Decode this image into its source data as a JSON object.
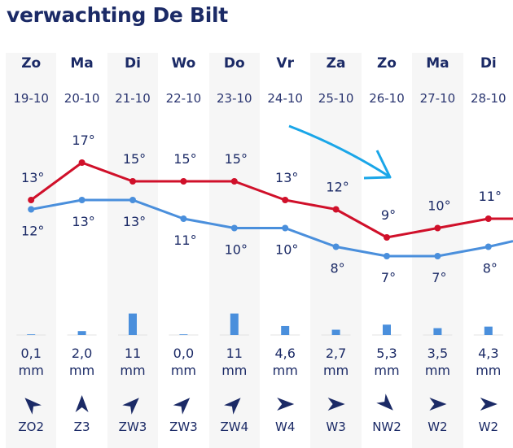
{
  "title": "verwachting De Bilt",
  "colors": {
    "text": "#1b2a66",
    "max_line": "#d0102a",
    "min_line": "#4a8fdc",
    "precip_bar": "#4a8fdc",
    "annotation_arrow": "#1aa6e8"
  },
  "chart_data": {
    "type": "line",
    "categories": [
      "Zo",
      "Ma",
      "Di",
      "Wo",
      "Do",
      "Vr",
      "Za",
      "Zo",
      "Ma",
      "Di"
    ],
    "dates": [
      "19-10",
      "20-10",
      "21-10",
      "22-10",
      "23-10",
      "24-10",
      "25-10",
      "26-10",
      "27-10",
      "28-10"
    ],
    "series": [
      {
        "values": [
          13,
          17,
          15,
          15,
          15,
          13,
          12,
          9,
          10,
          11
        ],
        "labels": [
          "13°",
          "17°",
          "15°",
          "15°",
          "15°",
          "13°",
          "12°",
          "9°",
          "10°",
          "11°"
        ],
        "color": "#d0102a"
      },
      {
        "values": [
          12,
          13,
          13,
          11,
          10,
          10,
          8,
          7,
          7,
          8
        ],
        "labels": [
          "12°",
          "13°",
          "13°",
          "11°",
          "10°",
          "10°",
          "8°",
          "7°",
          "7°",
          "8°"
        ],
        "color": "#4a8fdc"
      }
    ],
    "precipitation": {
      "values": [
        0.1,
        2.0,
        11,
        0.0,
        11,
        4.6,
        2.7,
        5.3,
        3.5,
        4.3
      ],
      "labels": [
        "0,1",
        "2,0",
        "11",
        "0,0",
        "11",
        "4,6",
        "2,7",
        "5,3",
        "3,5",
        "4,3"
      ],
      "unit": "mm"
    },
    "wind": {
      "labels": [
        "ZO2",
        "Z3",
        "ZW3",
        "ZW3",
        "ZW4",
        "W4",
        "W3",
        "NW2",
        "W2",
        "W2"
      ],
      "arrow_rotation_deg": [
        -45,
        0,
        45,
        45,
        45,
        90,
        90,
        135,
        90,
        90
      ]
    },
    "annotation": "arrow pointing to 26-10"
  }
}
